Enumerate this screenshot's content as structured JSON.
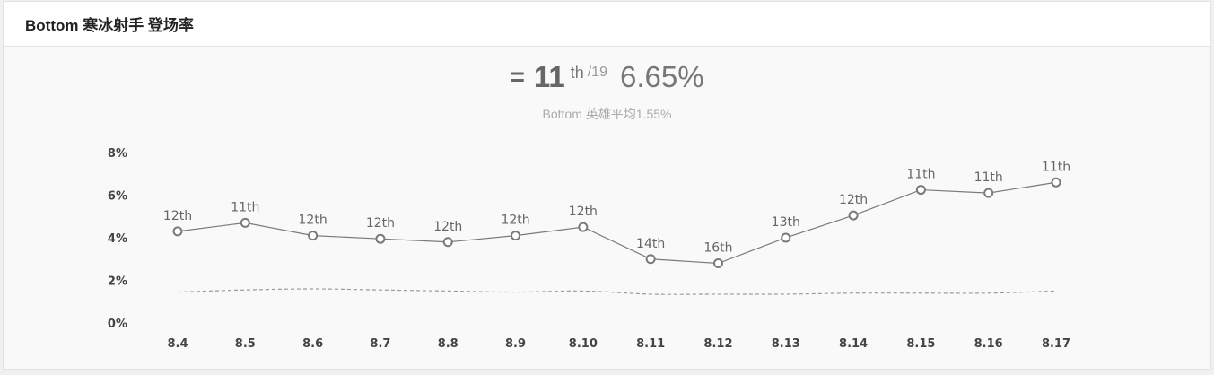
{
  "header": {
    "title": "Bottom 寒冰射手 登场率"
  },
  "summary": {
    "equal_sign": "=",
    "rank": "11",
    "rank_suffix": "th",
    "rank_total": "/19",
    "rate": "6.65%",
    "average_text": "Bottom 英雄平均1.55%"
  },
  "colors": {
    "series_line": "#7a7a7a",
    "average_line": "#9a9a9a",
    "marker_fill": "#ffffff",
    "label_text": "#666666",
    "axis_text": "#444444"
  },
  "chart_data": {
    "type": "line",
    "x": [
      "8.4",
      "8.5",
      "8.6",
      "8.7",
      "8.8",
      "8.9",
      "8.10",
      "8.11",
      "8.12",
      "8.13",
      "8.14",
      "8.15",
      "8.16",
      "8.17"
    ],
    "series": [
      {
        "values": [
          4.3,
          4.7,
          4.1,
          3.95,
          3.8,
          4.1,
          4.5,
          3.0,
          2.8,
          4.0,
          5.05,
          6.25,
          6.1,
          6.6
        ],
        "point_labels": [
          "12th",
          "11th",
          "12th",
          "12th",
          "12th",
          "12th",
          "12th",
          "14th",
          "16th",
          "13th",
          "12th",
          "11th",
          "11th",
          "11th"
        ],
        "style": "solid-with-circle-markers"
      },
      {
        "values": [
          1.45,
          1.55,
          1.6,
          1.55,
          1.5,
          1.45,
          1.5,
          1.35,
          1.35,
          1.35,
          1.4,
          1.4,
          1.4,
          1.5
        ],
        "style": "dashed"
      }
    ],
    "ylim": [
      0,
      8
    ],
    "yticks": [
      0,
      2,
      4,
      6,
      8
    ],
    "ytick_labels": [
      "0%",
      "2%",
      "4%",
      "6%",
      "8%"
    ],
    "grid": false,
    "legend": "none"
  }
}
